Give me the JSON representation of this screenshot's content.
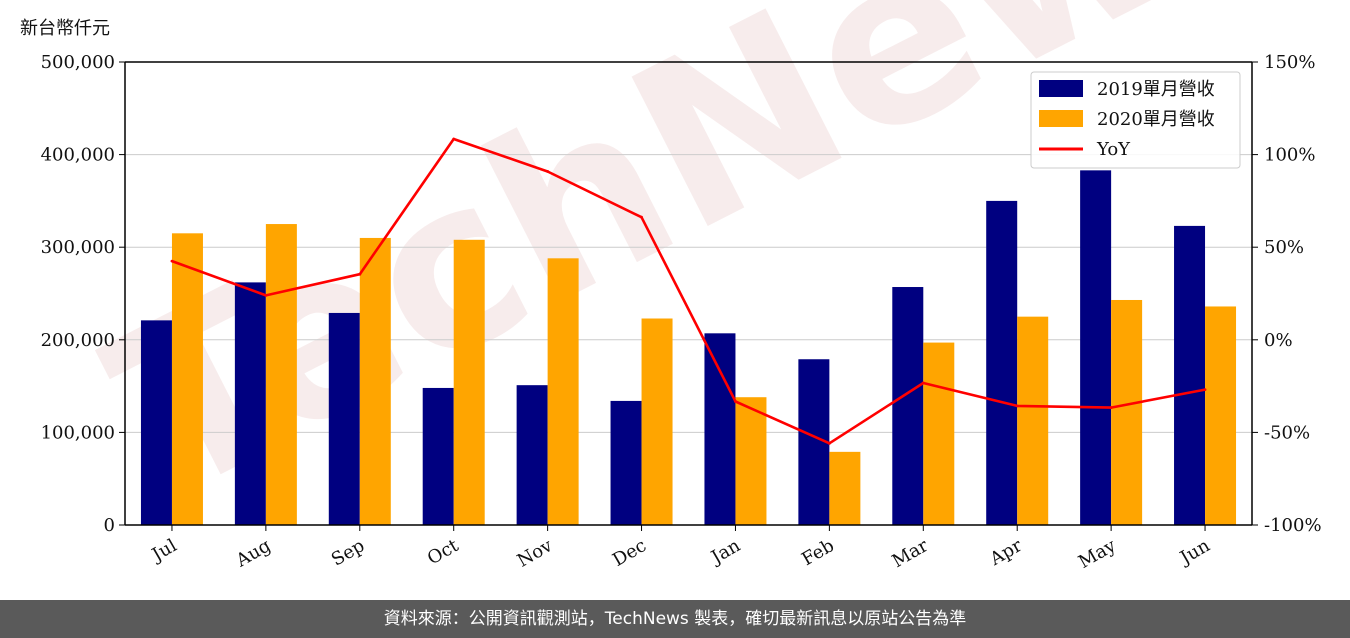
{
  "chart_data": {
    "type": "bar",
    "unit_label": "新台幣仟元",
    "categories": [
      "Jul",
      "Aug",
      "Sep",
      "Oct",
      "Nov",
      "Dec",
      "Jan",
      "Feb",
      "Mar",
      "Apr",
      "May",
      "Jun"
    ],
    "series": [
      {
        "name": "2019單月營收",
        "type": "bar",
        "axis": "left",
        "color": "#000080",
        "values": [
          221000,
          262000,
          229000,
          148000,
          151000,
          134000,
          207000,
          179000,
          257000,
          350000,
          383000,
          323000
        ]
      },
      {
        "name": "2020單月營收",
        "type": "bar",
        "axis": "left",
        "color": "#FFA500",
        "values": [
          315000,
          325000,
          310000,
          308000,
          288000,
          223000,
          138000,
          79000,
          197000,
          225000,
          243000,
          236000
        ]
      },
      {
        "name": "YoY",
        "type": "line",
        "axis": "right",
        "color": "#FF0000",
        "values": [
          42.5,
          24.0,
          35.4,
          108.4,
          90.9,
          66.2,
          -33.3,
          -55.9,
          -23.3,
          -35.7,
          -36.6,
          -26.9
        ]
      }
    ],
    "ylim_left": [
      0,
      500000
    ],
    "yticks_left": [
      0,
      100000,
      200000,
      300000,
      400000,
      500000
    ],
    "yticklabels_left": [
      "0",
      "100,000",
      "200,000",
      "300,000",
      "400,000",
      "500,000"
    ],
    "ylim_right": [
      -100,
      150
    ],
    "yticks_right": [
      -100,
      -50,
      0,
      50,
      100,
      150
    ],
    "yticklabels_right": [
      "-100%",
      "-50%",
      "0%",
      "50%",
      "100%",
      "150%"
    ],
    "grid": true,
    "legend_position": "top-right"
  },
  "watermark": "TechNews",
  "footer": {
    "source": "資料來源：公開資訊觀測站，TechNews 製表，確切最新訊息以原站公告為準"
  }
}
